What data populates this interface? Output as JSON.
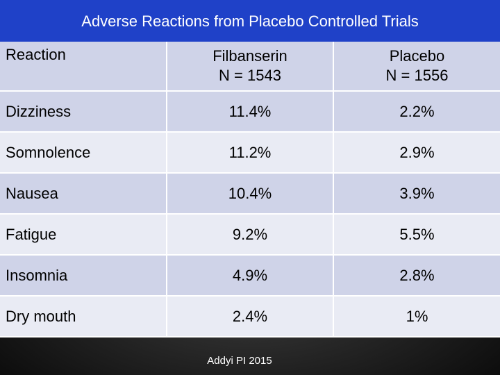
{
  "title": "Adverse Reactions from Placebo Controlled Trials",
  "table": {
    "header": {
      "reaction": "Reaction",
      "col1_name": "Filbanserin",
      "col1_n": "N = 1543",
      "col2_name": "Placebo",
      "col2_n": "N = 1556"
    },
    "rows": [
      {
        "reaction": "Dizziness",
        "filbanserin": "11.4%",
        "placebo": "2.2%"
      },
      {
        "reaction": "Somnolence",
        "filbanserin": "11.2%",
        "placebo": "2.9%"
      },
      {
        "reaction": "Nausea",
        "filbanserin": "10.4%",
        "placebo": "3.9%"
      },
      {
        "reaction": "Fatigue",
        "filbanserin": "9.2%",
        "placebo": "5.5%"
      },
      {
        "reaction": "Insomnia",
        "filbanserin": "4.9%",
        "placebo": "2.8%"
      },
      {
        "reaction": "Dry mouth",
        "filbanserin": "2.4%",
        "placebo": "1%"
      }
    ]
  },
  "footer": "Addyi PI 2015",
  "colors": {
    "title_bar": "#1f41c8",
    "row_dark": "#cfd3e8",
    "row_light": "#e9ebf4",
    "background": "#000000"
  }
}
